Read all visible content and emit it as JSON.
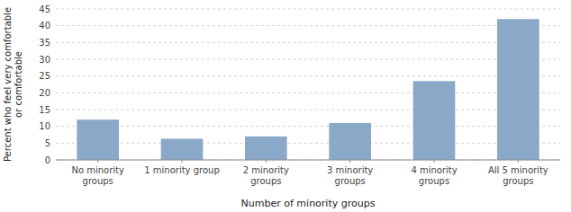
{
  "chart_data": {
    "type": "bar",
    "categories": [
      "No minority groups",
      "1 minority group",
      "2 minority groups",
      "3 minority groups",
      "4 minority groups",
      "All 5 minority groups"
    ],
    "values": [
      12,
      6.3,
      7,
      11,
      23.5,
      42
    ],
    "color": "#8aa8c8",
    "xlabel": "Number of minority groups",
    "ylabel": "Percent who feel very comfortable\nor comfortable",
    "ylim": [
      0,
      45
    ],
    "yticks": [
      0,
      5,
      10,
      15,
      20,
      25,
      30,
      35,
      40,
      45
    ],
    "grid": true
  }
}
